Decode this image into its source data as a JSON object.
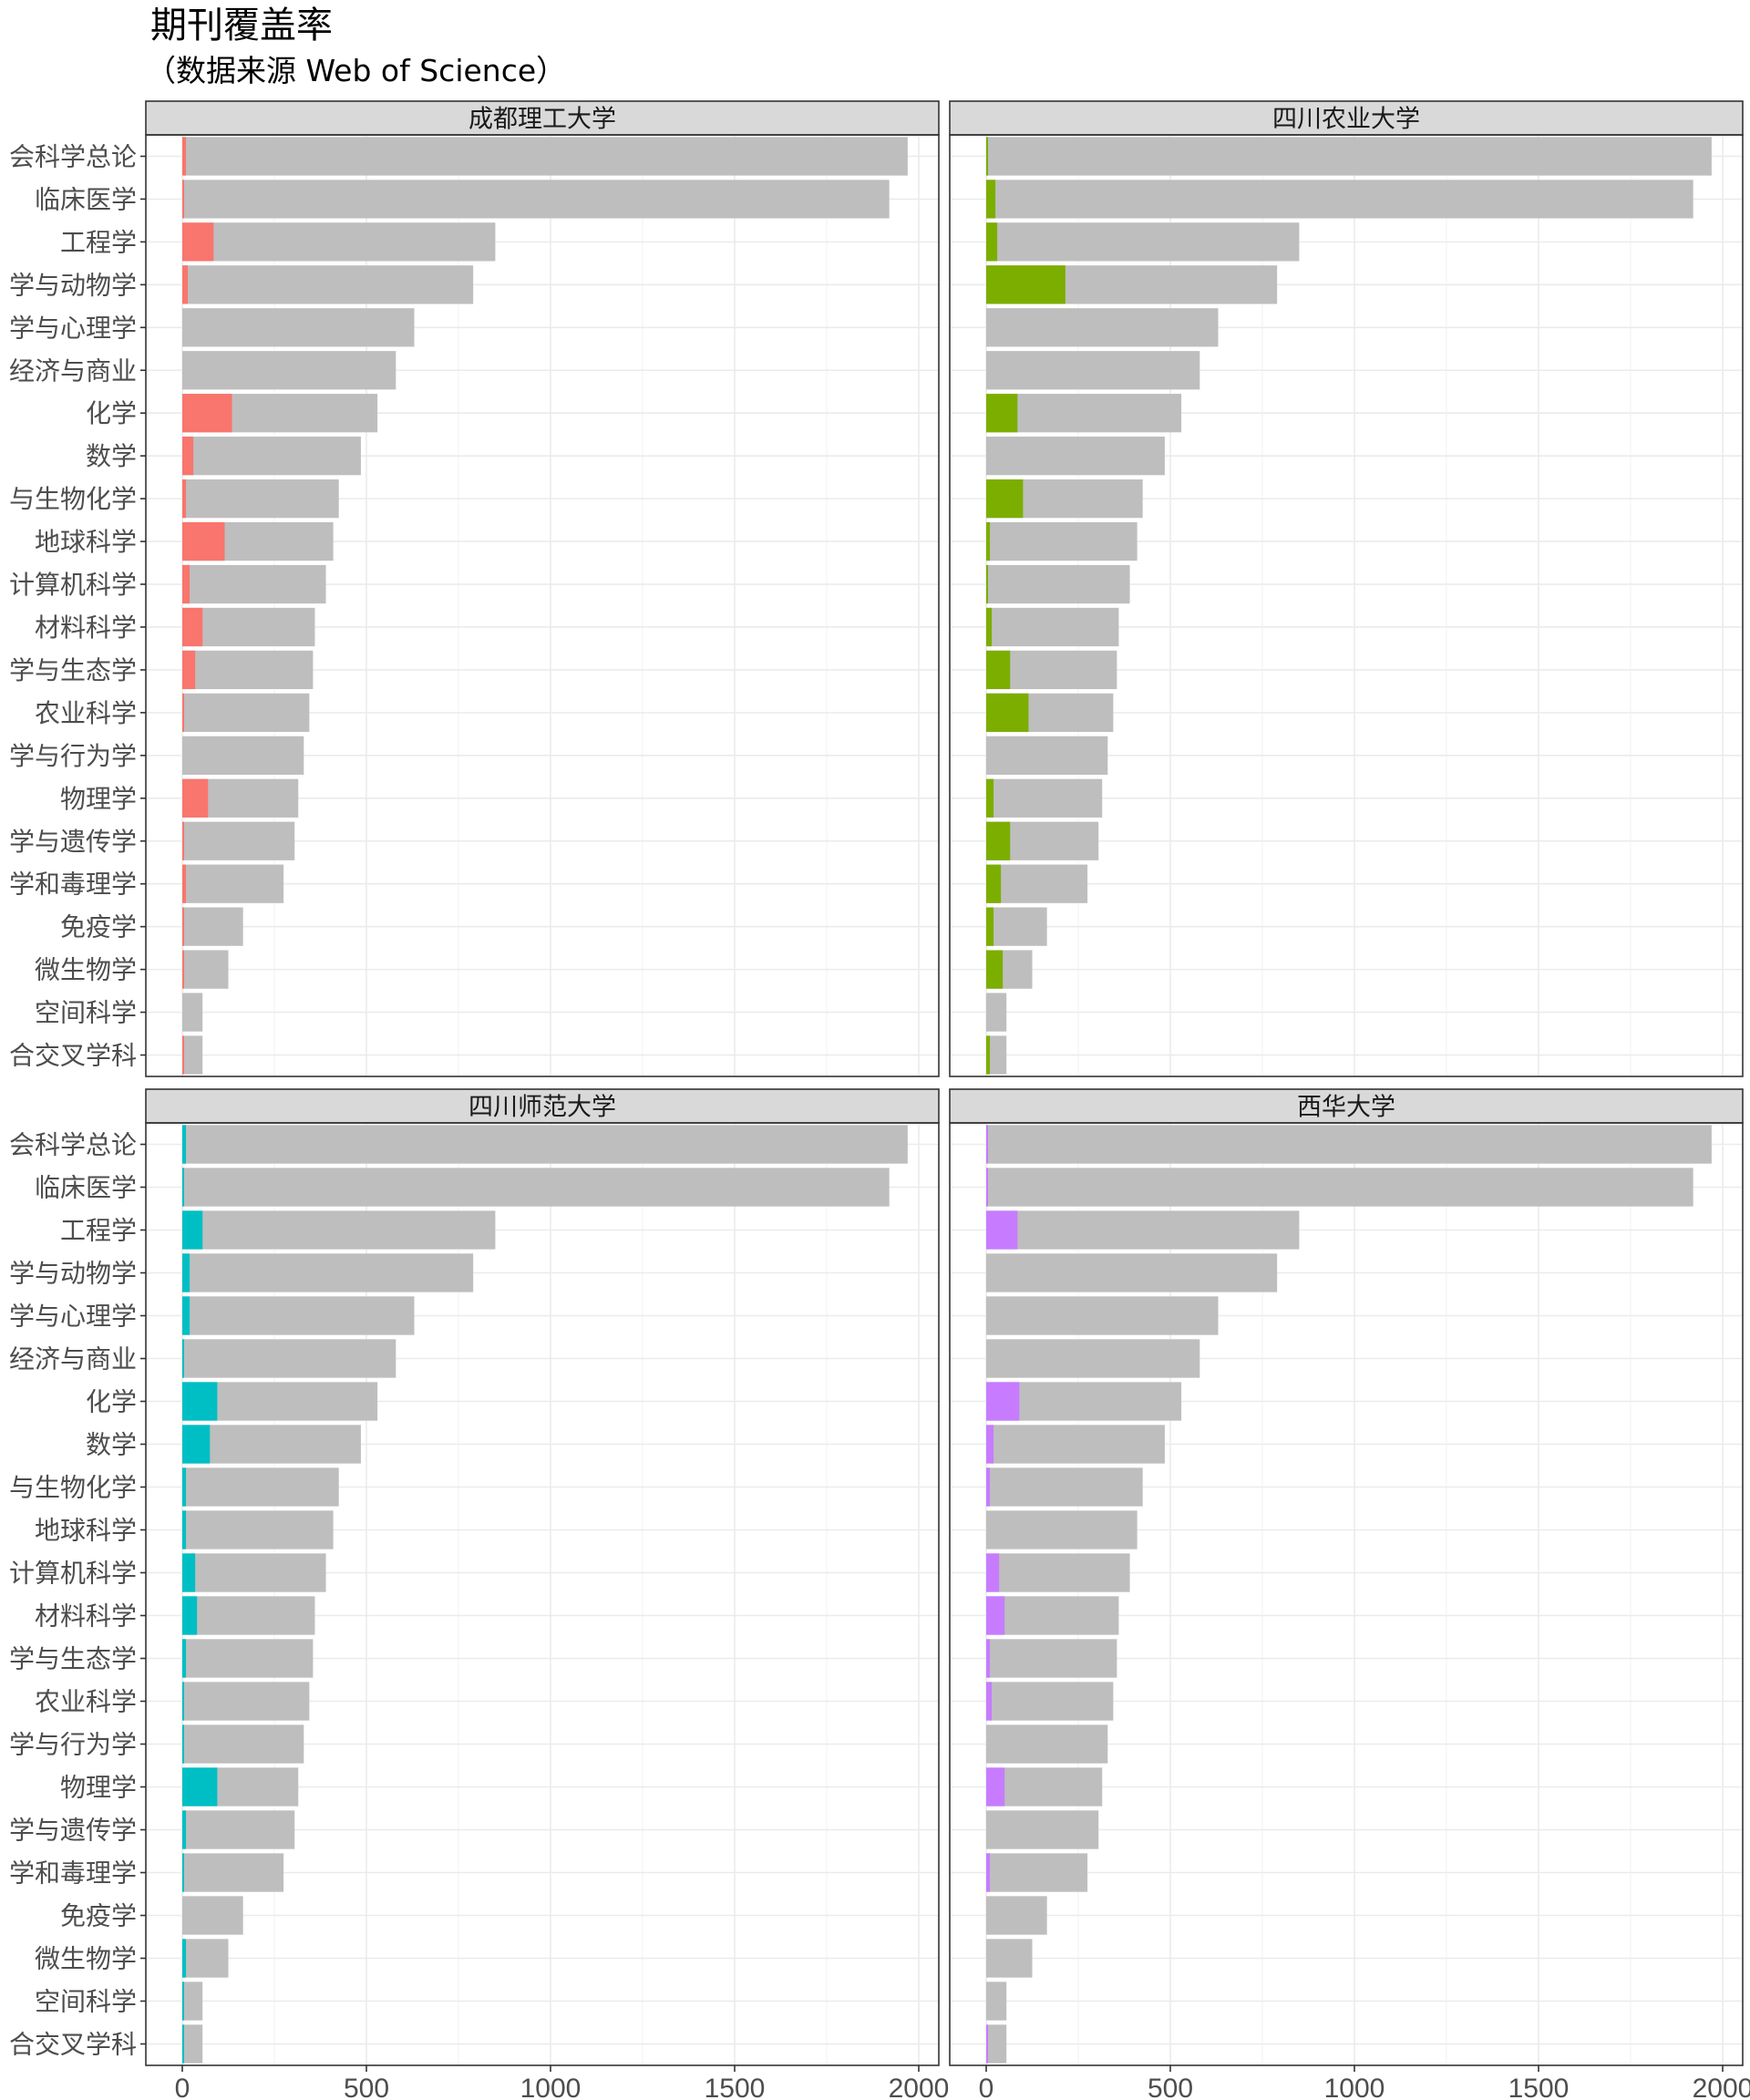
{
  "chart_data": {
    "type": "bar",
    "orientation": "horizontal",
    "stacked": true,
    "title": "期刊覆盖率",
    "subtitle": "（数据来源 Web of Science）",
    "xlim": [
      0,
      2000
    ],
    "x_ticks": [
      0,
      500,
      1000,
      1500,
      2000
    ],
    "grid": true,
    "legend": "none",
    "background_color": "#bebebe",
    "categories": [
      "会科学总论",
      "临床医学",
      "工程学",
      "学与动物学",
      "学与心理学",
      "经济与商业",
      "化学",
      "数学",
      "与生物化学",
      "地球科学",
      "计算机科学",
      "材料科学",
      "学与生态学",
      "农业科学",
      "学与行为学",
      "物理学",
      "学与遗传学",
      "学和毒理学",
      "免疫学",
      "微生物学",
      "空间科学",
      "合交叉学科"
    ],
    "totals": [
      1970,
      1920,
      850,
      790,
      630,
      580,
      530,
      485,
      425,
      410,
      390,
      360,
      355,
      345,
      330,
      315,
      305,
      275,
      165,
      125,
      55,
      55
    ],
    "panels": [
      {
        "name": "成都理工大学",
        "color": "#f8766d",
        "values": [
          10,
          5,
          85,
          15,
          0,
          0,
          135,
          30,
          10,
          115,
          20,
          55,
          35,
          5,
          0,
          70,
          5,
          10,
          5,
          5,
          0,
          5
        ]
      },
      {
        "name": "四川农业大学",
        "color": "#7cae00",
        "values": [
          5,
          25,
          30,
          215,
          0,
          0,
          85,
          0,
          100,
          10,
          5,
          15,
          65,
          115,
          0,
          20,
          65,
          40,
          20,
          45,
          0,
          10
        ]
      },
      {
        "name": "四川师范大学",
        "color": "#00bfc4",
        "values": [
          10,
          5,
          55,
          20,
          20,
          5,
          95,
          75,
          10,
          10,
          35,
          40,
          10,
          5,
          5,
          95,
          10,
          5,
          0,
          10,
          5,
          5
        ]
      },
      {
        "name": "西华大学",
        "color": "#c77cff",
        "values": [
          5,
          5,
          85,
          0,
          0,
          0,
          90,
          20,
          10,
          0,
          35,
          50,
          10,
          15,
          0,
          50,
          0,
          10,
          0,
          0,
          0,
          5
        ]
      }
    ]
  }
}
